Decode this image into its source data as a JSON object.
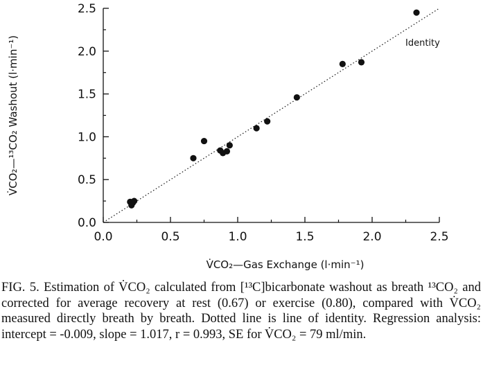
{
  "chart_data": {
    "type": "scatter",
    "xlabel": "V̇CO₂—Gas Exchange (l·min⁻¹)",
    "ylabel": "V̇CO₂—¹³CO₂ Washout (l·min⁻¹)",
    "xlim": [
      0,
      2.5
    ],
    "ylim": [
      0,
      2.5
    ],
    "x_ticks": [
      "0.0",
      "0.5",
      "1.0",
      "1.5",
      "2.0",
      "2.5"
    ],
    "y_ticks": [
      "0.0",
      "0.5",
      "1.0",
      "1.5",
      "2.0",
      "2.5"
    ],
    "grid": false,
    "points": [
      {
        "x": 0.2,
        "y": 0.24
      },
      {
        "x": 0.21,
        "y": 0.2
      },
      {
        "x": 0.22,
        "y": 0.23
      },
      {
        "x": 0.23,
        "y": 0.25
      },
      {
        "x": 0.67,
        "y": 0.75
      },
      {
        "x": 0.75,
        "y": 0.95
      },
      {
        "x": 0.87,
        "y": 0.84
      },
      {
        "x": 0.89,
        "y": 0.81
      },
      {
        "x": 0.92,
        "y": 0.83
      },
      {
        "x": 0.94,
        "y": 0.9
      },
      {
        "x": 1.14,
        "y": 1.1
      },
      {
        "x": 1.22,
        "y": 1.18
      },
      {
        "x": 1.44,
        "y": 1.46
      },
      {
        "x": 1.78,
        "y": 1.85
      },
      {
        "x": 1.92,
        "y": 1.87
      },
      {
        "x": 2.33,
        "y": 2.45
      }
    ],
    "identity_line": {
      "x": [
        0,
        2.5
      ],
      "y": [
        0,
        2.5
      ],
      "style": "dotted",
      "label": "Identity"
    }
  },
  "caption": {
    "label": "FIG. 5.",
    "text": "Estimation of V̇CO₂ calculated from [¹³C]bicarbonate washout as breath ¹³CO₂ and corrected for average recovery at rest (0.67) or exercise (0.80), compared with V̇CO₂ measured directly breath by breath. Dotted line is line of identity. Regression analysis: intercept = -0.009, slope = 1.017, r = 0.993, SE for V̇CO₂ = 79 ml/min."
  }
}
